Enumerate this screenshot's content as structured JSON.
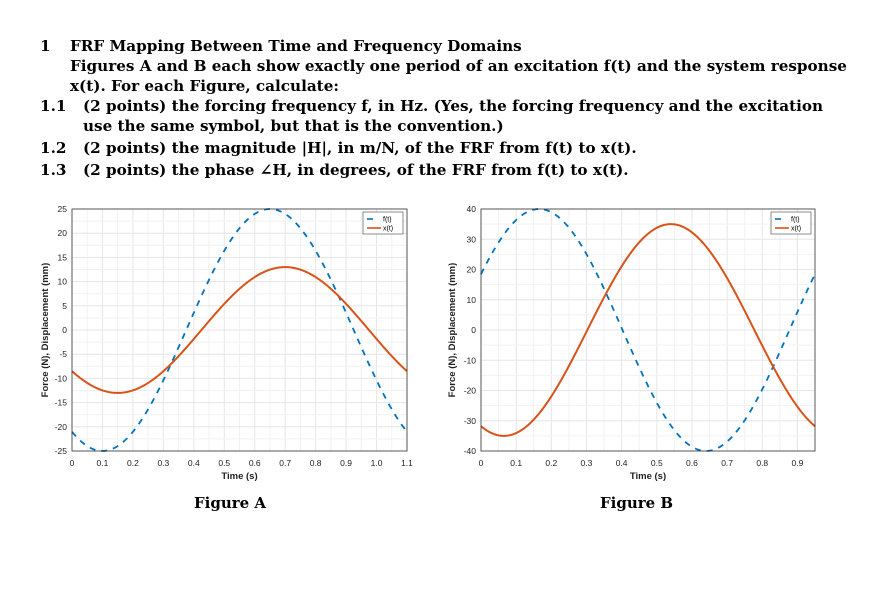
{
  "problem": {
    "number": "1",
    "title": "FRF Mapping Between Time and Frequency Domains",
    "intro_line1": "Figures A and B each show exactly one period of an excitation f(t) and the system response",
    "intro_line2": "x(t). For each Figure, calculate:",
    "items": [
      {
        "number": "1.1",
        "line1": "(2 points) the forcing frequency f, in Hz. (Yes, the forcing frequency and the excitation",
        "line2": "use the same symbol, but that is the convention.)"
      },
      {
        "number": "1.2",
        "line1": "(2 points) the magnitude |H|, in m/N, of the FRF from f(t) to x(t)."
      },
      {
        "number": "1.3",
        "line1": "(2 points) the phase ∠H, in degrees, of the FRF from f(t) to x(t)."
      }
    ]
  },
  "colors": {
    "force": "#0072BD",
    "displacement": "#D95319",
    "grid": "#e6e6e6",
    "axis": "#333333"
  },
  "chart_data": [
    {
      "type": "line",
      "caption": "Figure A",
      "xlabel": "Time (s)",
      "ylabel": "Force (N), Displacement (mm)",
      "xlim": [
        0,
        1.1
      ],
      "ylim": [
        -25,
        25
      ],
      "xticks": [
        0,
        0.1,
        0.2,
        0.3,
        0.4,
        0.5,
        0.6,
        0.7,
        0.8,
        0.9,
        1.0,
        1.1
      ],
      "xticklabels": [
        "0",
        "0.1",
        "0.2",
        "0.3",
        "0.4",
        "0.5",
        "0.6",
        "0.7",
        "0.8",
        "0.9",
        "1.0",
        "1.1"
      ],
      "yticks": [
        -25,
        -20,
        -15,
        -10,
        -5,
        0,
        5,
        10,
        15,
        20,
        25
      ],
      "yticklabels": [
        "-25",
        "-20",
        "-15",
        "-10",
        "-5",
        "0",
        "5",
        "10",
        "15",
        "20",
        "25"
      ],
      "grid": true,
      "legend_position": "top-right",
      "series": [
        {
          "name": "f(t)",
          "style": "dashed",
          "amplitude": 25,
          "period": 1.1,
          "peak_time": 0.65,
          "samples": 200
        },
        {
          "name": "x(t)",
          "style": "solid",
          "amplitude": 13,
          "period": 1.1,
          "peak_time": 0.7,
          "samples": 200
        }
      ]
    },
    {
      "type": "line",
      "caption": "Figure B",
      "xlabel": "Time (s)",
      "ylabel": "Force (N), Displacement (mm)",
      "xlim": [
        0,
        0.95
      ],
      "ylim": [
        -40,
        40
      ],
      "xticks": [
        0,
        0.1,
        0.2,
        0.3,
        0.4,
        0.5,
        0.6,
        0.7,
        0.8,
        0.9
      ],
      "xticklabels": [
        "0",
        "0.1",
        "0.2",
        "0.3",
        "0.4",
        "0.5",
        "0.6",
        "0.7",
        "0.8",
        "0.9"
      ],
      "yticks": [
        -40,
        -30,
        -20,
        -10,
        0,
        10,
        20,
        30,
        40
      ],
      "yticklabels": [
        "-40",
        "-30",
        "-20",
        "-10",
        "0",
        "10",
        "20",
        "30",
        "40"
      ],
      "grid": true,
      "legend_position": "top-right",
      "series": [
        {
          "name": "f(t)",
          "style": "dashed",
          "amplitude": 40,
          "period": 0.95,
          "peak_time": 0.165,
          "samples": 200
        },
        {
          "name": "x(t)",
          "style": "solid",
          "amplitude": 35,
          "period": 0.95,
          "peak_time": 0.54,
          "samples": 200
        }
      ]
    }
  ]
}
